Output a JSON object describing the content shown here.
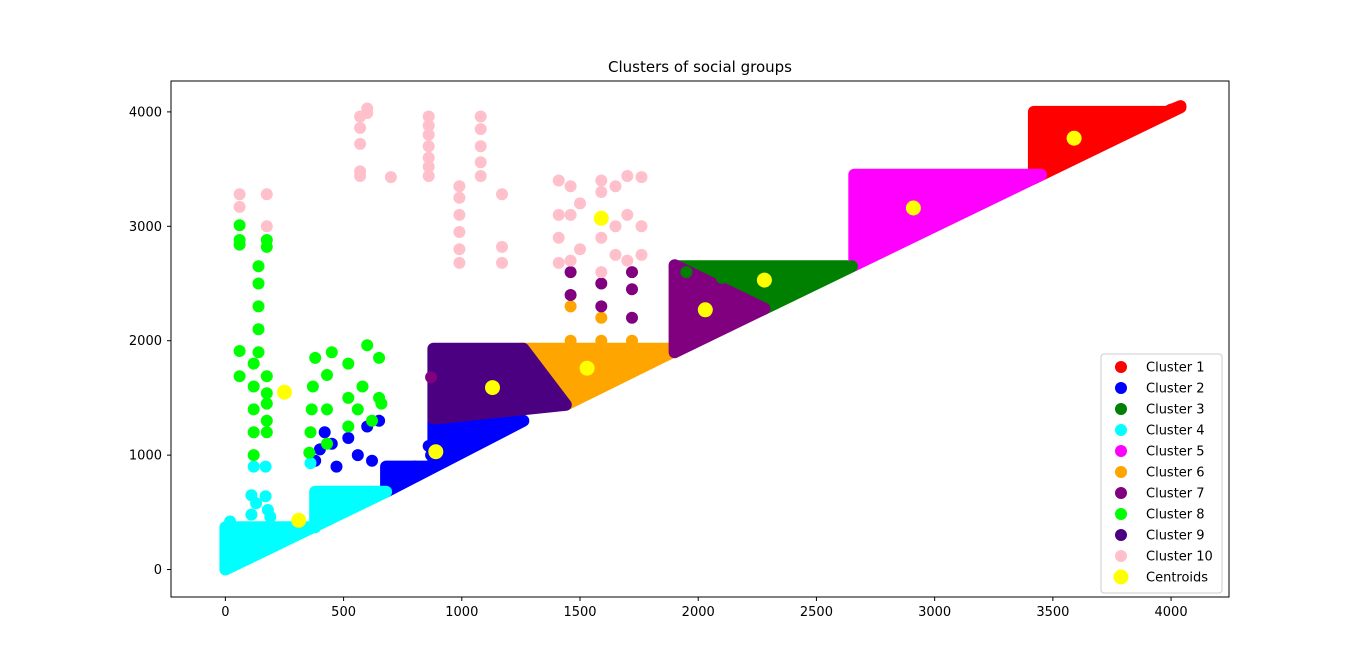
{
  "chart_data": {
    "type": "scatter",
    "title": "Clusters of social groups",
    "xlabel": "",
    "ylabel": "",
    "xlim": [
      -230,
      4245
    ],
    "ylim": [
      -240,
      4270
    ],
    "xticks": [
      0,
      500,
      1000,
      1500,
      2000,
      2500,
      3000,
      3500,
      4000
    ],
    "yticks": [
      0,
      1000,
      2000,
      3000,
      4000
    ],
    "grid": false,
    "legend_position": "lower-right",
    "series": [
      {
        "name": "Cluster 1",
        "color": "#ff0000",
        "region": [
          [
            3420,
            3420
          ],
          [
            3420,
            4000
          ],
          [
            3980,
            4000
          ],
          [
            4040,
            4050
          ],
          [
            4040,
            4040
          ],
          [
            3420,
            3420
          ]
        ],
        "points": [
          [
            3450,
            3600
          ],
          [
            3600,
            3800
          ],
          [
            3800,
            3900
          ],
          [
            4000,
            4020
          ],
          [
            3440,
            3980
          ]
        ]
      },
      {
        "name": "Cluster 2",
        "color": "#0000ff",
        "region": [
          [
            680,
            680
          ],
          [
            680,
            900
          ],
          [
            880,
            900
          ],
          [
            880,
            1300
          ],
          [
            1260,
            1300
          ],
          [
            680,
            680
          ]
        ],
        "points": [
          [
            380,
            950
          ],
          [
            400,
            1050
          ],
          [
            450,
            1100
          ],
          [
            520,
            1150
          ],
          [
            560,
            1000
          ],
          [
            600,
            1250
          ],
          [
            650,
            1300
          ],
          [
            620,
            950
          ],
          [
            470,
            900
          ],
          [
            420,
            1200
          ],
          [
            860,
            1080
          ],
          [
            870,
            1000
          ],
          [
            700,
            800
          ],
          [
            800,
            900
          ],
          [
            900,
            1200
          ],
          [
            1000,
            1100
          ],
          [
            1100,
            1250
          ]
        ]
      },
      {
        "name": "Cluster 3",
        "color": "#008000",
        "region": [
          [
            1900,
            2650
          ],
          [
            2650,
            2650
          ],
          [
            2280,
            2280
          ],
          [
            1900,
            2650
          ]
        ],
        "points": [
          [
            1950,
            2600
          ],
          [
            2100,
            2550
          ],
          [
            2300,
            2600
          ],
          [
            2500,
            2620
          ],
          [
            2650,
            2650
          ]
        ]
      },
      {
        "name": "Cluster 4",
        "color": "#00ffff",
        "region": [
          [
            0,
            0
          ],
          [
            0,
            370
          ],
          [
            380,
            370
          ],
          [
            380,
            680
          ],
          [
            680,
            680
          ],
          [
            0,
            0
          ]
        ],
        "points": [
          [
            20,
            420
          ],
          [
            60,
            340
          ],
          [
            110,
            650
          ],
          [
            110,
            480
          ],
          [
            130,
            580
          ],
          [
            170,
            640
          ],
          [
            180,
            520
          ],
          [
            190,
            460
          ],
          [
            360,
            930
          ],
          [
            170,
            900
          ],
          [
            120,
            900
          ],
          [
            40,
            200
          ],
          [
            300,
            380
          ]
        ]
      },
      {
        "name": "Cluster 5",
        "color": "#ff00ff",
        "region": [
          [
            2660,
            2660
          ],
          [
            2660,
            3450
          ],
          [
            3450,
            3450
          ],
          [
            2660,
            2660
          ]
        ],
        "points": [
          [
            2700,
            3400
          ],
          [
            2900,
            3300
          ],
          [
            3100,
            3200
          ],
          [
            3300,
            3420
          ],
          [
            2680,
            2800
          ]
        ]
      },
      {
        "name": "Cluster 6",
        "color": "#ffa500",
        "region": [
          [
            1250,
            1930
          ],
          [
            1920,
            1930
          ],
          [
            1440,
            1440
          ],
          [
            1250,
            1930
          ]
        ],
        "points": [
          [
            1460,
            2000
          ],
          [
            1460,
            2300
          ],
          [
            1590,
            2000
          ],
          [
            1590,
            2200
          ],
          [
            1720,
            2000
          ],
          [
            1720,
            1950
          ],
          [
            1600,
            1700
          ],
          [
            1800,
            1900
          ]
        ]
      },
      {
        "name": "Cluster 7",
        "color": "#800080",
        "region": [
          [
            1900,
            1900
          ],
          [
            1900,
            2660
          ],
          [
            2280,
            2280
          ],
          [
            1900,
            1900
          ]
        ],
        "points": [
          [
            1460,
            2400
          ],
          [
            1460,
            2600
          ],
          [
            1590,
            2300
          ],
          [
            1590,
            2500
          ],
          [
            1720,
            2200
          ],
          [
            1720,
            2450
          ],
          [
            1720,
            2600
          ],
          [
            870,
            1680
          ],
          [
            2000,
            2400
          ]
        ]
      },
      {
        "name": "Cluster 8",
        "color": "#00ff00",
        "points": [
          [
            60,
            1910
          ],
          [
            60,
            1690
          ],
          [
            60,
            3010
          ],
          [
            60,
            2880
          ],
          [
            60,
            2840
          ],
          [
            120,
            1000
          ],
          [
            120,
            1200
          ],
          [
            120,
            1400
          ],
          [
            120,
            1600
          ],
          [
            120,
            1800
          ],
          [
            140,
            1900
          ],
          [
            140,
            2100
          ],
          [
            140,
            2300
          ],
          [
            140,
            2500
          ],
          [
            140,
            2650
          ],
          [
            175,
            1690
          ],
          [
            175,
            1540
          ],
          [
            175,
            1450
          ],
          [
            175,
            1300
          ],
          [
            175,
            1200
          ],
          [
            175,
            2880
          ],
          [
            175,
            2820
          ],
          [
            355,
            1020
          ],
          [
            360,
            1200
          ],
          [
            365,
            1400
          ],
          [
            370,
            1600
          ],
          [
            380,
            1850
          ],
          [
            430,
            1100
          ],
          [
            430,
            1400
          ],
          [
            430,
            1700
          ],
          [
            450,
            1900
          ],
          [
            520,
            1250
          ],
          [
            520,
            1500
          ],
          [
            520,
            1800
          ],
          [
            560,
            1400
          ],
          [
            580,
            1600
          ],
          [
            600,
            1960
          ],
          [
            620,
            1300
          ],
          [
            650,
            1500
          ],
          [
            650,
            1850
          ],
          [
            660,
            1450
          ]
        ]
      },
      {
        "name": "Cluster 9",
        "color": "#4b0082",
        "region": [
          [
            880,
            1320
          ],
          [
            880,
            1930
          ],
          [
            1260,
            1930
          ],
          [
            1440,
            1440
          ],
          [
            880,
            1320
          ]
        ],
        "points": [
          [
            900,
            1900
          ],
          [
            1000,
            1600
          ],
          [
            1100,
            1800
          ],
          [
            1200,
            1500
          ],
          [
            1300,
            1700
          ],
          [
            1400,
            1500
          ]
        ]
      },
      {
        "name": "Cluster 10",
        "color": "#ffc0cb",
        "points": [
          [
            60,
            3280
          ],
          [
            60,
            3170
          ],
          [
            175,
            3280
          ],
          [
            175,
            3000
          ],
          [
            570,
            3440
          ],
          [
            570,
            3480
          ],
          [
            570,
            3720
          ],
          [
            570,
            3860
          ],
          [
            570,
            3960
          ],
          [
            600,
            3990
          ],
          [
            600,
            4030
          ],
          [
            700,
            3430
          ],
          [
            860,
            3440
          ],
          [
            860,
            3520
          ],
          [
            860,
            3600
          ],
          [
            860,
            3700
          ],
          [
            860,
            3800
          ],
          [
            860,
            3880
          ],
          [
            860,
            3960
          ],
          [
            990,
            2680
          ],
          [
            990,
            2800
          ],
          [
            990,
            2950
          ],
          [
            990,
            3100
          ],
          [
            990,
            3250
          ],
          [
            990,
            3350
          ],
          [
            1080,
            3440
          ],
          [
            1080,
            3560
          ],
          [
            1080,
            3700
          ],
          [
            1080,
            3850
          ],
          [
            1080,
            3960
          ],
          [
            1170,
            3280
          ],
          [
            1170,
            2820
          ],
          [
            1170,
            2680
          ],
          [
            1410,
            2680
          ],
          [
            1410,
            2900
          ],
          [
            1410,
            3100
          ],
          [
            1410,
            3400
          ],
          [
            1460,
            2700
          ],
          [
            1460,
            3100
          ],
          [
            1460,
            3350
          ],
          [
            1500,
            2800
          ],
          [
            1500,
            3200
          ],
          [
            1590,
            2600
          ],
          [
            1590,
            2900
          ],
          [
            1590,
            3300
          ],
          [
            1590,
            3400
          ],
          [
            1650,
            2750
          ],
          [
            1650,
            3000
          ],
          [
            1650,
            3350
          ],
          [
            1700,
            2700
          ],
          [
            1700,
            3100
          ],
          [
            1700,
            3440
          ],
          [
            1760,
            2750
          ],
          [
            1760,
            3000
          ],
          [
            1760,
            3430
          ]
        ]
      }
    ],
    "centroids": {
      "name": "Centroids",
      "color": "#ffff00",
      "points": [
        [
          3590,
          3770
        ],
        [
          890,
          1030
        ],
        [
          2280,
          2530
        ],
        [
          310,
          430
        ],
        [
          2910,
          3160
        ],
        [
          1530,
          1760
        ],
        [
          2030,
          2270
        ],
        [
          250,
          1550
        ],
        [
          1130,
          1590
        ],
        [
          1590,
          3070
        ]
      ]
    }
  }
}
